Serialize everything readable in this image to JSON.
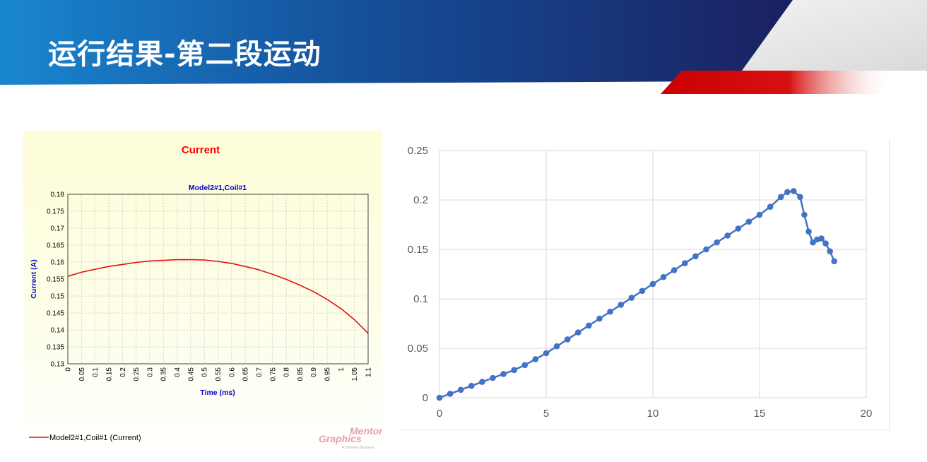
{
  "slide": {
    "title": "运行结果-第二段运动"
  },
  "colors": {
    "banner_dark": "#1a2a6e",
    "banner_light": "#1a7fc8",
    "accent_red": "#d40000",
    "left_title_red": "#ff0000",
    "left_subtitle_blue": "#0000cc",
    "left_series_red": "#e01010",
    "right_series_blue": "#4472c4"
  },
  "chart_data": [
    {
      "type": "line",
      "title": "Current",
      "subtitle": "Model2#1,Coil#1",
      "xlabel": "Time (ms)",
      "ylabel": "Current (A)",
      "xlim": [
        0,
        1.1
      ],
      "ylim": [
        0.13,
        0.18
      ],
      "x_ticks": [
        "0",
        "0.05",
        "0.1",
        "0.15",
        "0.2",
        "0.25",
        "0.3",
        "0.35",
        "0.4",
        "0.45",
        "0.5",
        "0.55",
        "0.6",
        "0.65",
        "0.7",
        "0.75",
        "0.8",
        "0.85",
        "0.9",
        "0.95",
        "1",
        "1.05",
        "1.1"
      ],
      "y_ticks": [
        "0.13",
        "0.135",
        "0.14",
        "0.145",
        "0.15",
        "0.155",
        "0.16",
        "0.165",
        "0.17",
        "0.175",
        "0.18"
      ],
      "grid": true,
      "legend": "bottom-left",
      "series": [
        {
          "name": "Model2#1,Coil#1 (Current)",
          "x": [
            0,
            0.05,
            0.1,
            0.15,
            0.2,
            0.25,
            0.3,
            0.35,
            0.4,
            0.45,
            0.5,
            0.55,
            0.6,
            0.65,
            0.7,
            0.75,
            0.8,
            0.85,
            0.9,
            0.95,
            1,
            1.05,
            1.1
          ],
          "y": [
            0.1558,
            0.157,
            0.1579,
            0.1587,
            0.1593,
            0.1599,
            0.1603,
            0.1605,
            0.1607,
            0.1607,
            0.1606,
            0.1602,
            0.1596,
            0.1587,
            0.1577,
            0.1564,
            0.1549,
            0.1532,
            0.1513,
            0.149,
            0.1463,
            0.143,
            0.139
          ]
        }
      ]
    },
    {
      "type": "scatter",
      "title": "",
      "xlabel": "",
      "ylabel": "",
      "xlim": [
        0,
        20
      ],
      "ylim": [
        0,
        0.25
      ],
      "x_ticks": [
        "0",
        "5",
        "10",
        "15",
        "20"
      ],
      "y_ticks": [
        "0",
        "0.05",
        "0.1",
        "0.15",
        "0.2",
        "0.25"
      ],
      "grid": true,
      "series": [
        {
          "x": [
            0,
            0.5,
            1,
            1.5,
            2,
            2.5,
            3,
            3.5,
            4,
            4.5,
            5,
            5.5,
            6,
            6.5,
            7,
            7.5,
            8,
            8.5,
            9,
            9.5,
            10,
            10.5,
            11,
            11.5,
            12,
            12.5,
            13,
            13.5,
            14,
            14.5,
            15,
            15.5,
            16,
            16.3,
            16.6,
            16.9,
            17.1,
            17.3,
            17.5,
            17.7,
            17.9,
            18.1,
            18.3,
            18.5
          ],
          "y": [
            0,
            0.004,
            0.008,
            0.012,
            0.016,
            0.02,
            0.024,
            0.028,
            0.033,
            0.039,
            0.045,
            0.052,
            0.059,
            0.066,
            0.073,
            0.08,
            0.087,
            0.094,
            0.101,
            0.108,
            0.115,
            0.122,
            0.129,
            0.136,
            0.143,
            0.15,
            0.157,
            0.164,
            0.171,
            0.178,
            0.185,
            0.193,
            0.203,
            0.208,
            0.209,
            0.203,
            0.185,
            0.168,
            0.157,
            0.16,
            0.161,
            0.156,
            0.148,
            0.138
          ]
        }
      ]
    }
  ],
  "watermark": {
    "brand_line1": "Mentor",
    "brand_line2": "Graphics",
    "tagline": "A Siemens Business"
  }
}
